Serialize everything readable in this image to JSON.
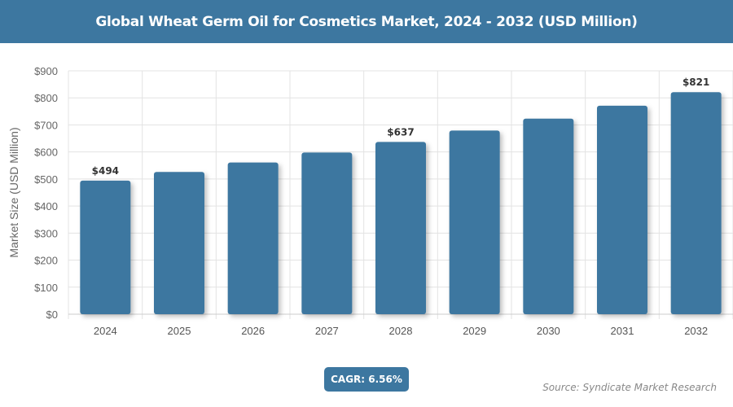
{
  "header": {
    "title": "Global Wheat Germ Oil for Cosmetics Market, 2024 - 2032 (USD Million)"
  },
  "footer": {
    "cagr": "CAGR: 6.56%",
    "source": "Source: Syndicate Market Research"
  },
  "chart_data": {
    "type": "bar",
    "title": "Global Wheat Germ Oil for Cosmetics Market, 2024 - 2032 (USD Million)",
    "xlabel": "",
    "ylabel": "Market Size (USD Million)",
    "categories": [
      "2024",
      "2025",
      "2026",
      "2027",
      "2028",
      "2029",
      "2030",
      "2031",
      "2032"
    ],
    "values": [
      494,
      526,
      561,
      598,
      637,
      679,
      723,
      771,
      821
    ],
    "data_labels": {
      "0": "$494",
      "4": "$637",
      "8": "$821"
    },
    "ylim": [
      0,
      900
    ],
    "yticks": [
      0,
      100,
      200,
      300,
      400,
      500,
      600,
      700,
      800,
      900
    ],
    "ytick_labels": [
      "$0",
      "$100",
      "$200",
      "$300",
      "$400",
      "$500",
      "$600",
      "$700",
      "$800",
      "$900"
    ],
    "grid": true,
    "bar_color": "#3d77a0"
  }
}
